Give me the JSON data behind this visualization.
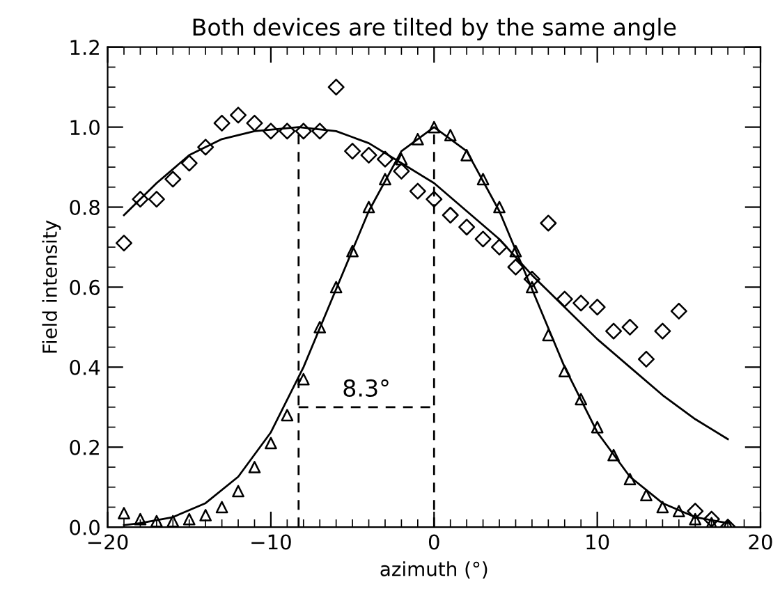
{
  "chart_data": {
    "type": "scatter",
    "title": "Both devices are tilted by the same angle",
    "xlabel": "azimuth (°)",
    "ylabel": "Field intensity",
    "xlim": [
      -20,
      20
    ],
    "ylim": [
      0,
      1.2
    ],
    "xticks": [
      {
        "value": -20,
        "label": "−20"
      },
      {
        "value": -10,
        "label": "−10"
      },
      0,
      10,
      20
    ],
    "yticks": [
      {
        "value": 0,
        "label": "0.0"
      },
      {
        "value": 0.2,
        "label": "0.2"
      },
      {
        "value": 0.4,
        "label": "0.4"
      },
      {
        "value": 0.6,
        "label": "0.6"
      },
      {
        "value": 0.8,
        "label": "0.8"
      },
      {
        "value": 1.0,
        "label": "1.0"
      },
      {
        "value": 1.2,
        "label": "1.2"
      }
    ],
    "grid": false,
    "legend": false,
    "annotations": [
      {
        "text": "8.3°",
        "x": -4.15,
        "y": 0.3
      }
    ],
    "series": [
      {
        "marker": "diamond",
        "color": "#000000",
        "x": [
          -19,
          -18,
          -17,
          -16,
          -15,
          -14,
          -13,
          -12,
          -11,
          -10,
          -9,
          -8,
          -7,
          -6,
          -5,
          -4,
          -3,
          -2,
          -1,
          0,
          1,
          2,
          3,
          4,
          5,
          6,
          7,
          8,
          9,
          10,
          11,
          12,
          13,
          14,
          15,
          16,
          17,
          18
        ],
        "values": [
          0.71,
          0.82,
          0.82,
          0.87,
          0.91,
          0.95,
          1.01,
          1.03,
          1.01,
          0.99,
          0.99,
          0.99,
          0.99,
          1.1,
          0.94,
          0.93,
          0.92,
          0.89,
          0.84,
          0.82,
          0.78,
          0.75,
          0.72,
          0.7,
          0.65,
          0.62,
          0.76,
          0.57,
          0.56,
          0.55,
          0.49,
          0.5,
          0.42,
          0.49,
          0.54,
          0.04,
          0.02,
          0.0
        ]
      },
      {
        "marker": "triangle",
        "color": "#000000",
        "x": [
          -19,
          -18,
          -17,
          -16,
          -15,
          -14,
          -13,
          -12,
          -11,
          -10,
          -9,
          -8,
          -7,
          -6,
          -5,
          -4,
          -3,
          -2,
          -1,
          0,
          1,
          2,
          3,
          4,
          5,
          6,
          7,
          8,
          9,
          10,
          11,
          12,
          13,
          14,
          15,
          16,
          17,
          18
        ],
        "values": [
          0.035,
          0.02,
          0.015,
          0.015,
          0.02,
          0.03,
          0.05,
          0.09,
          0.15,
          0.21,
          0.28,
          0.37,
          0.5,
          0.6,
          0.69,
          0.8,
          0.87,
          0.92,
          0.97,
          1.0,
          0.98,
          0.93,
          0.87,
          0.8,
          0.69,
          0.6,
          0.48,
          0.39,
          0.32,
          0.25,
          0.18,
          0.12,
          0.08,
          0.05,
          0.04,
          0.02,
          0.01,
          0.005
        ]
      },
      {
        "type": "line",
        "marker": "none",
        "line_style": "solid",
        "color": "#000000",
        "x": [
          -19,
          -17,
          -15,
          -13,
          -11,
          -8.3,
          -6,
          -4,
          -2,
          0,
          2,
          4,
          6,
          8,
          10,
          12,
          14,
          16,
          18
        ],
        "values": [
          0.78,
          0.86,
          0.93,
          0.97,
          0.99,
          1.0,
          0.99,
          0.96,
          0.91,
          0.86,
          0.79,
          0.72,
          0.63,
          0.55,
          0.47,
          0.4,
          0.33,
          0.27,
          0.22
        ]
      },
      {
        "type": "line",
        "marker": "none",
        "line_style": "solid",
        "color": "#000000",
        "x": [
          -19,
          -18,
          -16,
          -14,
          -12,
          -10,
          -8,
          -6,
          -4,
          -2,
          0,
          2,
          4,
          6,
          8,
          10,
          12,
          14,
          16,
          18
        ],
        "values": [
          0.005,
          0.01,
          0.025,
          0.06,
          0.126,
          0.237,
          0.4,
          0.595,
          0.79,
          0.94,
          1.0,
          0.94,
          0.79,
          0.595,
          0.4,
          0.237,
          0.126,
          0.06,
          0.025,
          0.01
        ]
      },
      {
        "type": "line",
        "marker": "none",
        "line_style": "dashed",
        "color": "#000000",
        "x": [
          -8.3,
          0
        ],
        "values": [
          0.3,
          0.3
        ]
      }
    ],
    "ref_lines": [
      {
        "axis": "x",
        "value": -8.3,
        "color": "#000000",
        "line_style": "dashed"
      },
      {
        "axis": "x",
        "value": 0,
        "color": "#000000",
        "line_style": "dashed"
      }
    ]
  }
}
